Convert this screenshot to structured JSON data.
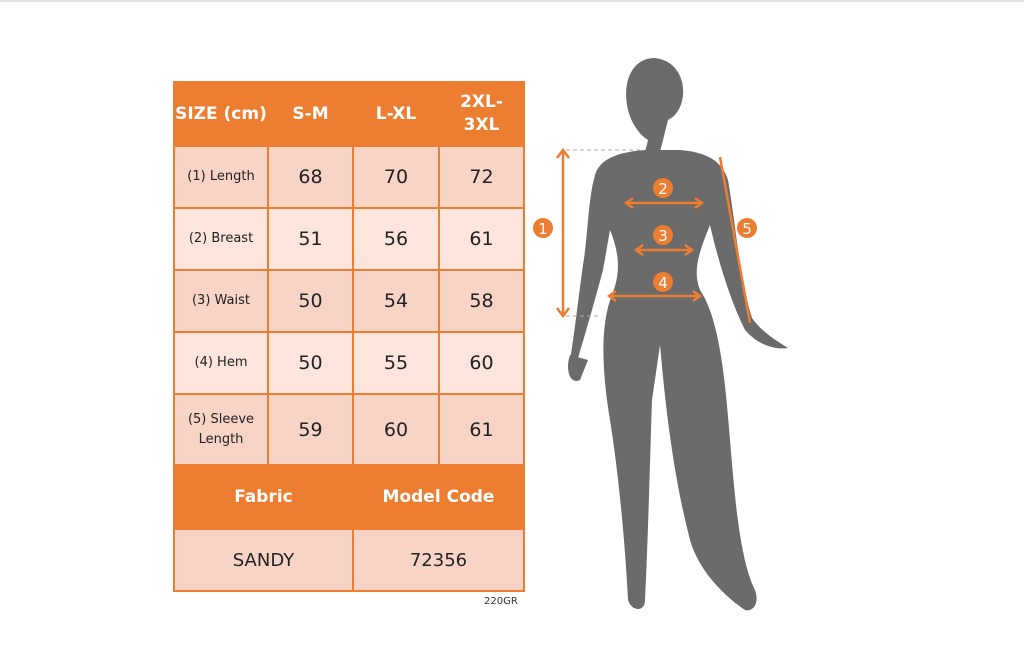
{
  "size_table": {
    "header": [
      "SIZE (cm)",
      "S-M",
      "L-XL",
      "2XL-3XL"
    ],
    "rows": [
      {
        "label": "(1) Length",
        "values": [
          "68",
          "70",
          "72"
        ]
      },
      {
        "label": "(2) Breast",
        "values": [
          "51",
          "56",
          "61"
        ]
      },
      {
        "label": "(3) Waist",
        "values": [
          "50",
          "54",
          "58"
        ]
      },
      {
        "label": "(4) Hem",
        "values": [
          "50",
          "55",
          "60"
        ]
      },
      {
        "label": "(5) Sleeve Length",
        "values": [
          "59",
          "60",
          "61"
        ]
      }
    ]
  },
  "info_table": {
    "fabric_label": "Fabric",
    "model_code_label": "Model Code",
    "fabric": "SANDY",
    "model_code": "72356"
  },
  "weight_note": "220GR",
  "figure": {
    "markers": [
      "1",
      "2",
      "3",
      "4",
      "5"
    ]
  },
  "colors": {
    "accent": "#ed7d31",
    "row_dark": "#f8d4c6",
    "row_light": "#fbe5dc",
    "silhouette": "#6b6b6b"
  }
}
